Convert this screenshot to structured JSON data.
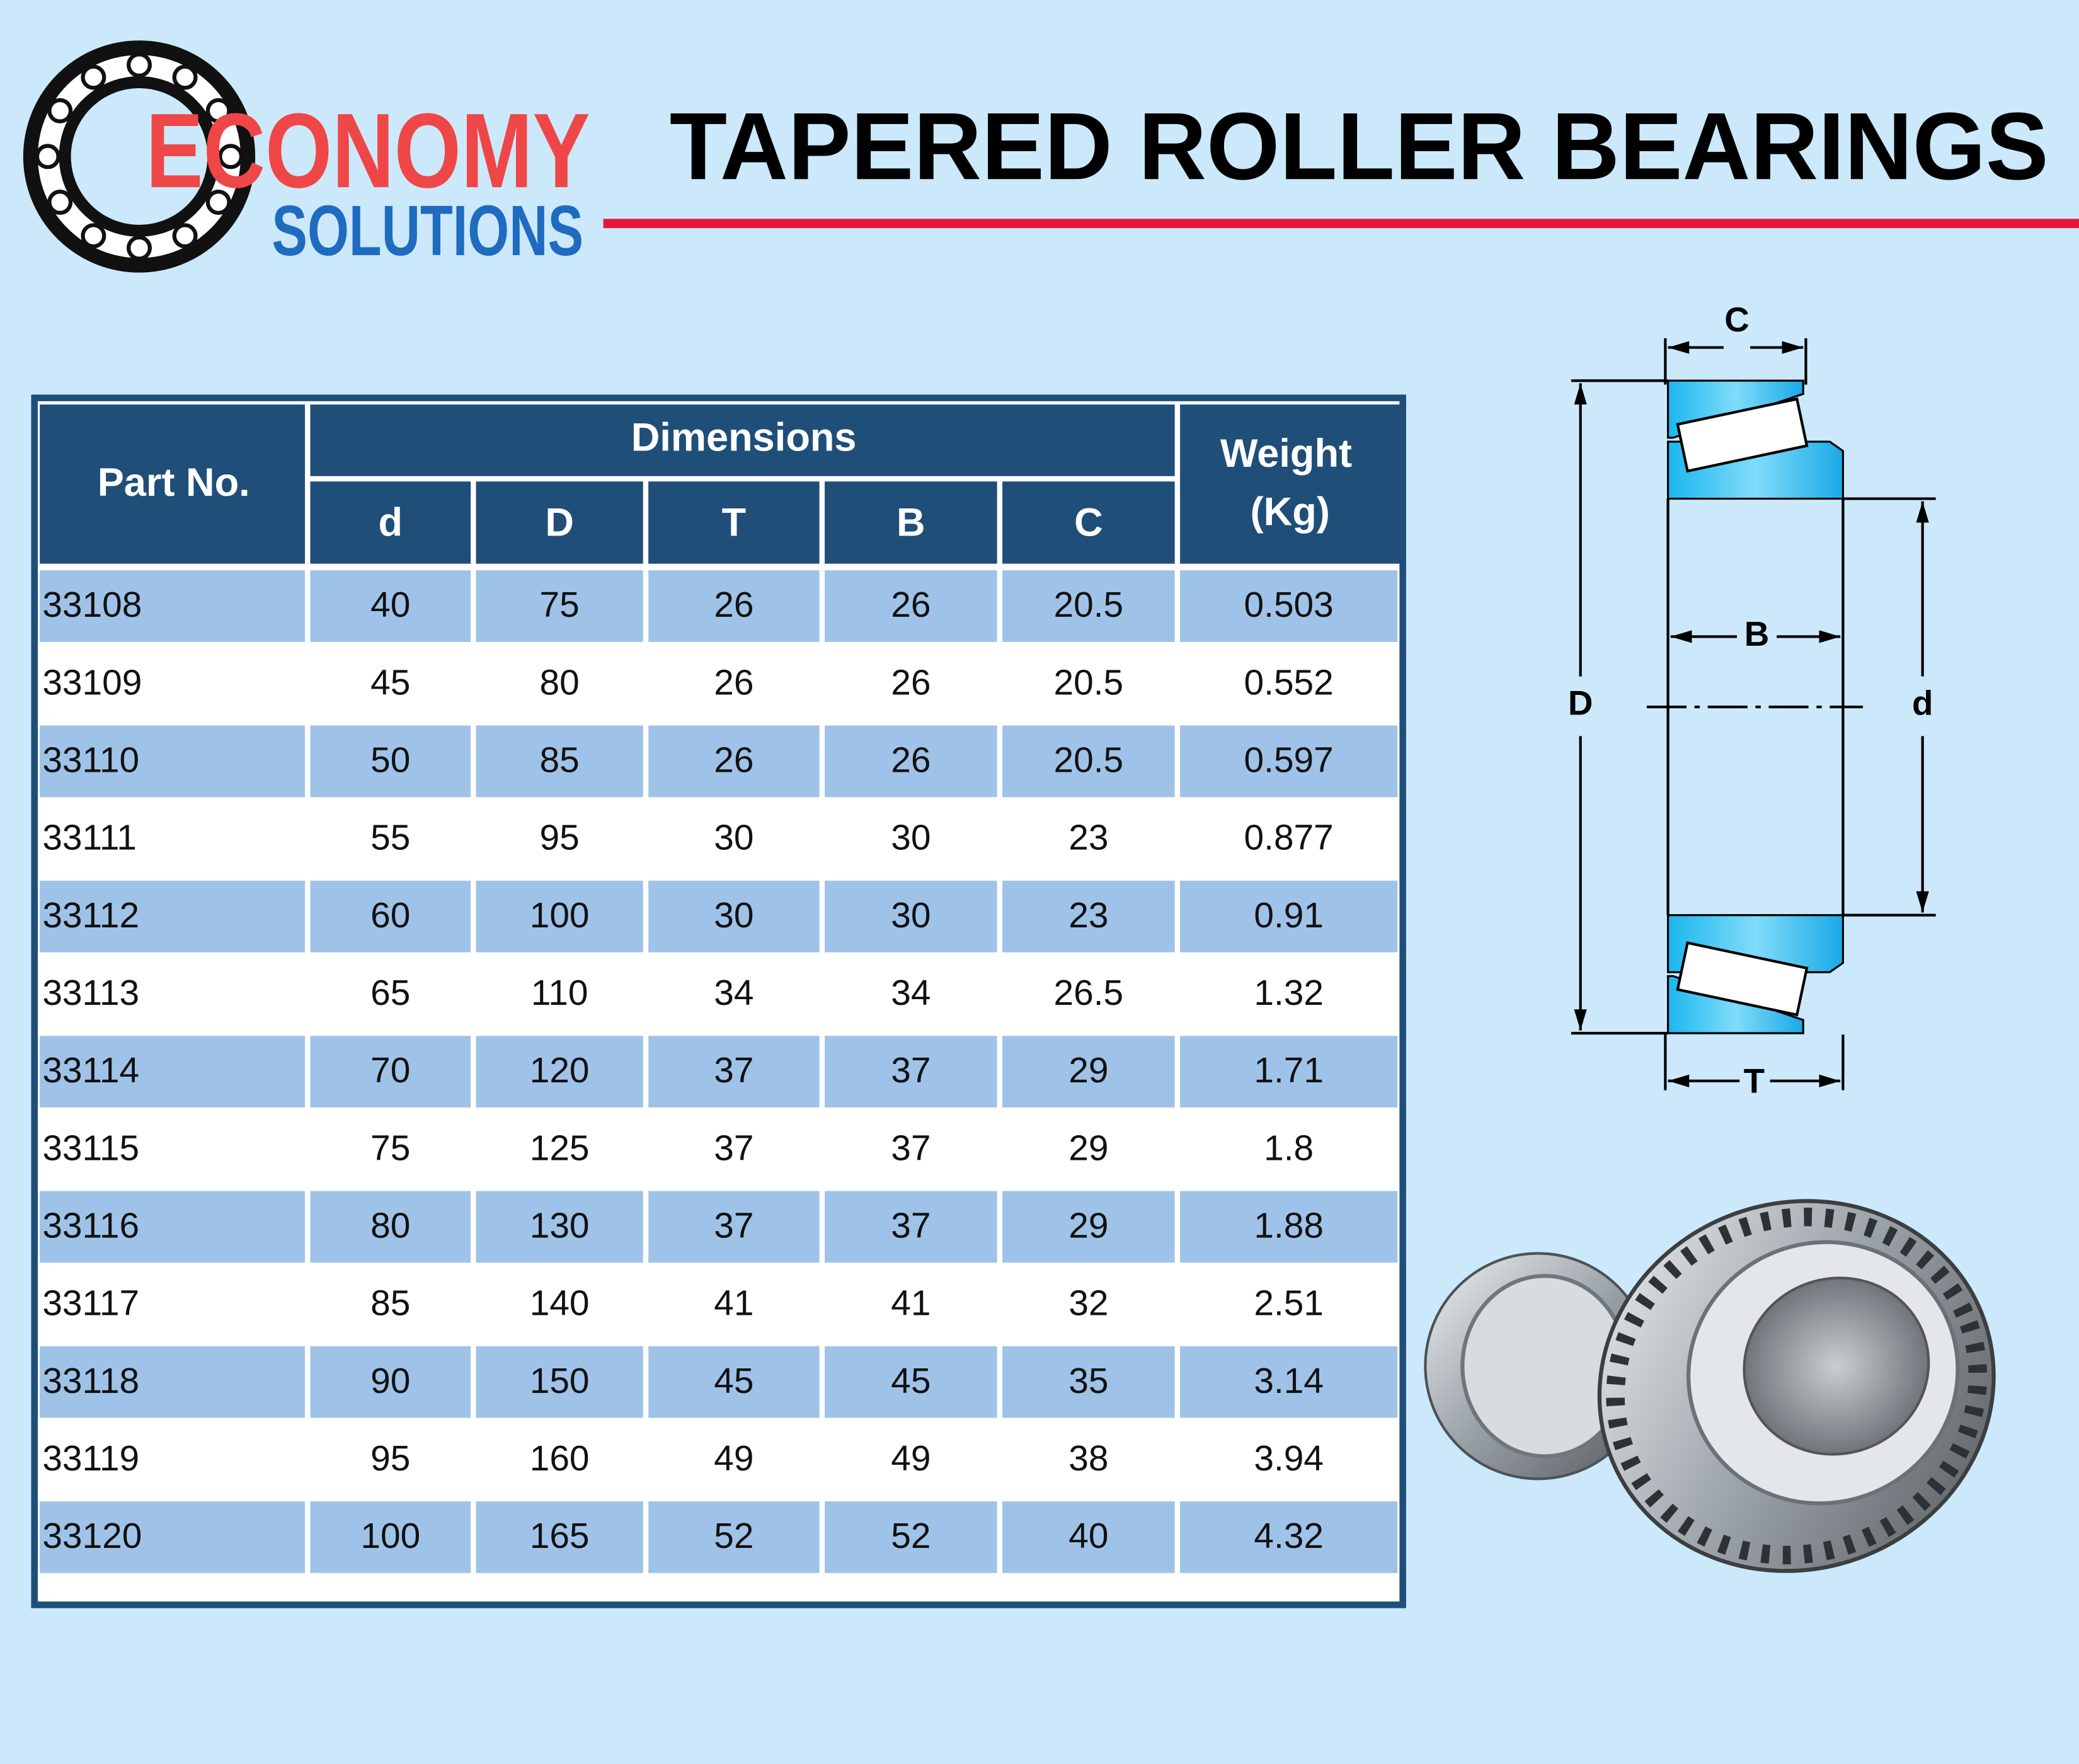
{
  "header": {
    "logo": {
      "line1": "ECONOMY",
      "line2": "SOLUTIONS"
    },
    "title": "TAPERED ROLLER BEARINGS"
  },
  "table": {
    "headers": {
      "part_no": "Part No.",
      "dimensions": "Dimensions",
      "columns": [
        "d",
        "D",
        "T",
        "B",
        "C"
      ],
      "weight": [
        "Weight",
        "(Kg)"
      ]
    },
    "rows": [
      [
        "33108",
        40,
        75,
        26,
        26,
        20.5,
        0.503
      ],
      [
        "33109",
        45,
        80,
        26,
        26,
        20.5,
        0.552
      ],
      [
        "33110",
        50,
        85,
        26,
        26,
        20.5,
        0.597
      ],
      [
        "33111",
        55,
        95,
        30,
        30,
        23,
        0.877
      ],
      [
        "33112",
        60,
        100,
        30,
        30,
        23,
        0.91
      ],
      [
        "33113",
        65,
        110,
        34,
        34,
        26.5,
        1.32
      ],
      [
        "33114",
        70,
        120,
        37,
        37,
        29,
        1.71
      ],
      [
        "33115",
        75,
        125,
        37,
        37,
        29,
        1.8
      ],
      [
        "33116",
        80,
        130,
        37,
        37,
        29,
        1.88
      ],
      [
        "33117",
        85,
        140,
        41,
        41,
        32,
        2.51
      ],
      [
        "33118",
        90,
        150,
        45,
        45,
        35,
        3.14
      ],
      [
        "33119",
        95,
        160,
        49,
        49,
        38,
        3.94
      ],
      [
        "33120",
        100,
        165,
        52,
        52,
        40,
        4.32
      ]
    ]
  },
  "diagram": {
    "labels": {
      "C": "C",
      "B": "B",
      "D": "D",
      "d": "d",
      "T": "T"
    }
  }
}
